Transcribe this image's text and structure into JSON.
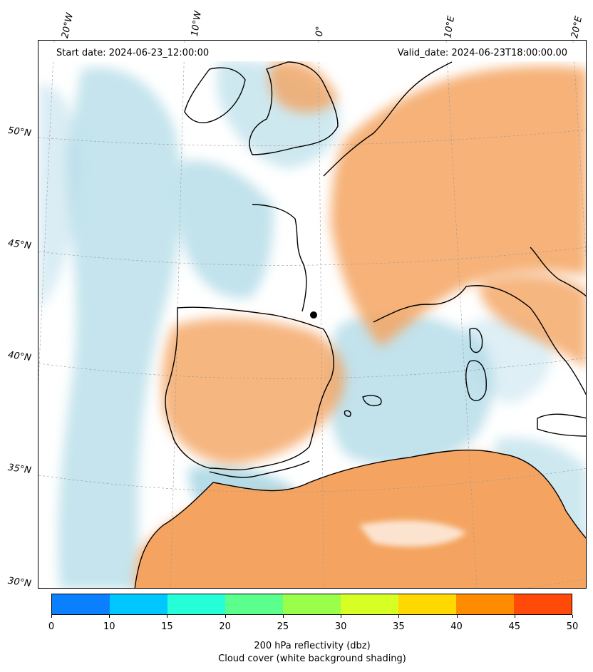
{
  "header": {
    "start_date": "Start date: 2024-06-23_12:00:00",
    "valid_date": "Valid_date: 2024-06-23T18:00:00.00"
  },
  "grid": {
    "lon_labels": [
      "20°W",
      "10°W",
      "0°",
      "10°E",
      "20°E"
    ],
    "lat_labels": [
      "50°N",
      "45°N",
      "40°N",
      "35°N",
      "30°N"
    ]
  },
  "colorbar": {
    "ticks": [
      "0",
      "10",
      "15",
      "20",
      "25",
      "30",
      "35",
      "40",
      "45",
      "50"
    ],
    "colors": [
      "#0a80ff",
      "#00c8ff",
      "#24ffd8",
      "#5aff8c",
      "#9aff4a",
      "#d8ff24",
      "#ffd800",
      "#ff8c00",
      "#ff4a0a"
    ],
    "label_line1": "200 hPa reflectivity (dbz)",
    "label_line2": "Cloud cover (white background shading)"
  },
  "map_colors": {
    "sea_cloud": "#add8e6",
    "land_cloud": "#f4a460",
    "clear": "#ffffff",
    "coast": "#000000"
  }
}
